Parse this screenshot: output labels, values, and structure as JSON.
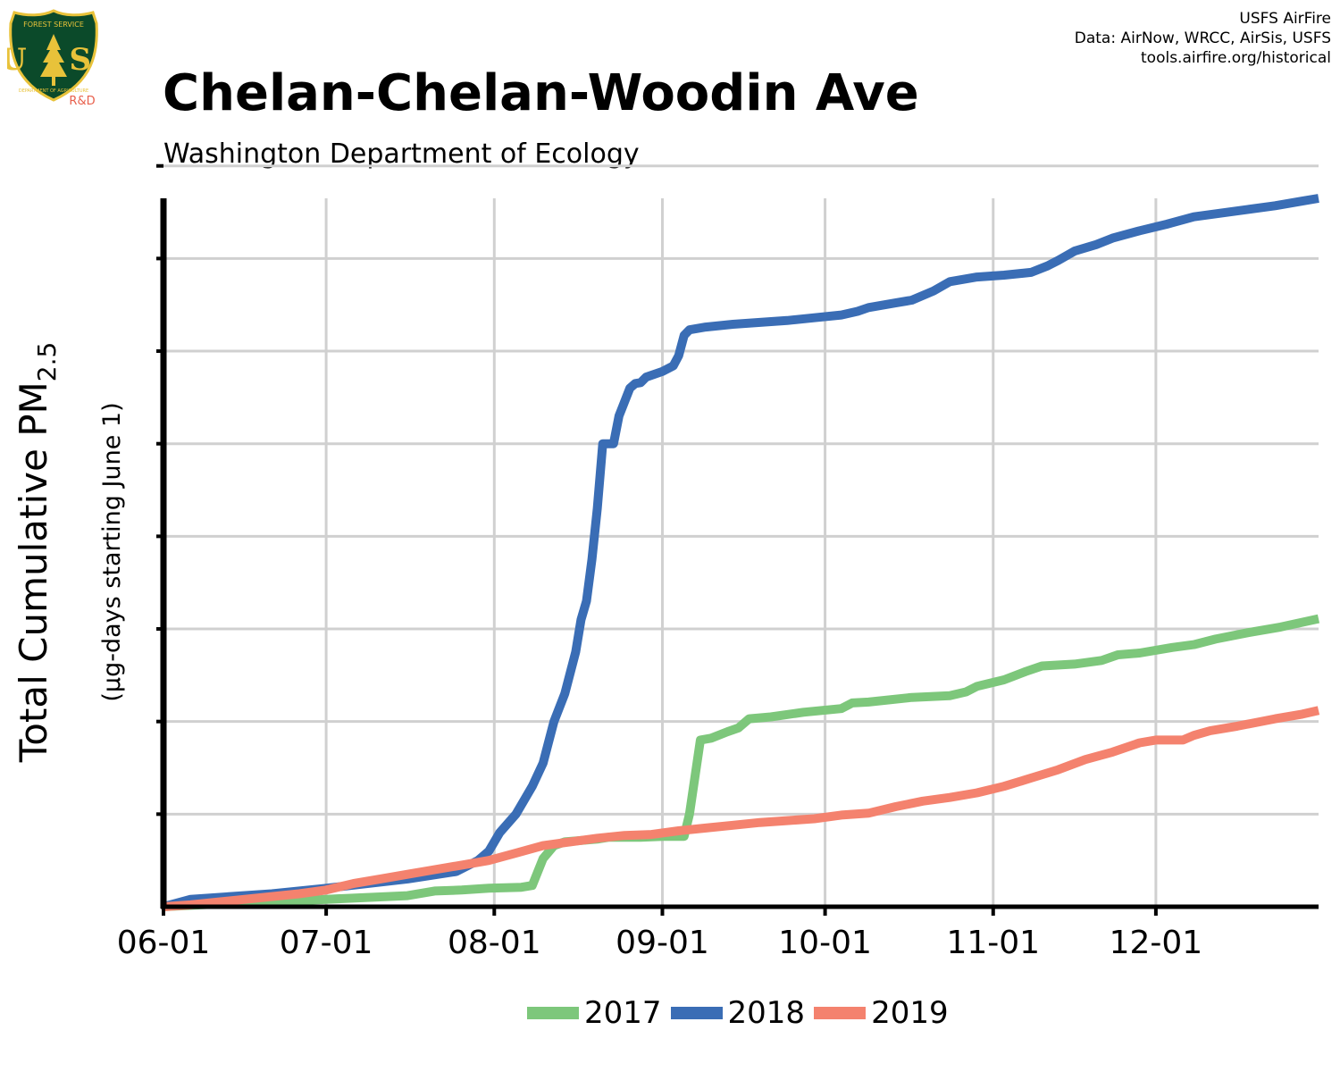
{
  "logo": {
    "icon": "usfs-shield-icon",
    "top_text": "FOREST SERVICE",
    "letters": "U S",
    "bottom_text": "DEPARTMENT OF AGRICULTURE",
    "badge": "R&D",
    "colors": {
      "shield": "#0b4a2a",
      "border": "#e8c23a",
      "badge": "#e8604c"
    }
  },
  "credits": {
    "line1": "USFS AirFire",
    "line2": "Data: AirNow, WRCC, AirSis, USFS",
    "line3": "tools.airfire.org/historical"
  },
  "header": {
    "title": "Chelan-Chelan-Woodin Ave",
    "subtitle": "Washington Department of Ecology"
  },
  "chart_data": {
    "type": "line",
    "title": "Chelan-Chelan-Woodin Ave",
    "subtitle": "Washington Department of Ecology",
    "ylabel_main": "Total Cumulative PM",
    "ylabel_sub": "2.5",
    "ylabel_units": "(µg-days starting June 1)",
    "xlabel": "",
    "x_ticks": [
      "06-01",
      "07-01",
      "08-01",
      "09-01",
      "10-01",
      "11-01",
      "12-01"
    ],
    "x_tick_days": [
      0,
      30,
      61,
      92,
      122,
      153,
      183
    ],
    "x_range": [
      0,
      213
    ],
    "y_range": [
      0,
      7.65
    ],
    "y_gridlines": 8,
    "y_tick_labels_visible": false,
    "grid": true,
    "legend_position": "bottom-center",
    "series": [
      {
        "name": "2017",
        "color": "#7dc77b",
        "points": [
          [
            0,
            0
          ],
          [
            10,
            0.03
          ],
          [
            20,
            0.05
          ],
          [
            30,
            0.08
          ],
          [
            45,
            0.12
          ],
          [
            50,
            0.17
          ],
          [
            55,
            0.18
          ],
          [
            60,
            0.2
          ],
          [
            66,
            0.21
          ],
          [
            68,
            0.23
          ],
          [
            70,
            0.52
          ],
          [
            72,
            0.66
          ],
          [
            74,
            0.7
          ],
          [
            80,
            0.73
          ],
          [
            82,
            0.75
          ],
          [
            88,
            0.75
          ],
          [
            92,
            0.76
          ],
          [
            96,
            0.76
          ],
          [
            97,
            1.0
          ],
          [
            99,
            1.8
          ],
          [
            101,
            1.82
          ],
          [
            104,
            1.89
          ],
          [
            106,
            1.93
          ],
          [
            108,
            2.03
          ],
          [
            112,
            2.05
          ],
          [
            118,
            2.1
          ],
          [
            125,
            2.14
          ],
          [
            127,
            2.2
          ],
          [
            130,
            2.21
          ],
          [
            138,
            2.26
          ],
          [
            145,
            2.28
          ],
          [
            148,
            2.32
          ],
          [
            150,
            2.38
          ],
          [
            155,
            2.45
          ],
          [
            159,
            2.54
          ],
          [
            162,
            2.6
          ],
          [
            168,
            2.62
          ],
          [
            173,
            2.66
          ],
          [
            176,
            2.72
          ],
          [
            180,
            2.74
          ],
          [
            186,
            2.8
          ],
          [
            190,
            2.83
          ],
          [
            194,
            2.89
          ],
          [
            200,
            2.96
          ],
          [
            206,
            3.02
          ],
          [
            213,
            3.11
          ]
        ]
      },
      {
        "name": "2018",
        "color": "#3a6db5",
        "points": [
          [
            0,
            0
          ],
          [
            5,
            0.08
          ],
          [
            20,
            0.14
          ],
          [
            30,
            0.2
          ],
          [
            45,
            0.3
          ],
          [
            54,
            0.38
          ],
          [
            58,
            0.5
          ],
          [
            60,
            0.6
          ],
          [
            62,
            0.8
          ],
          [
            65,
            1.0
          ],
          [
            68,
            1.3
          ],
          [
            70,
            1.55
          ],
          [
            72,
            2.0
          ],
          [
            74,
            2.3
          ],
          [
            76,
            2.75
          ],
          [
            77,
            3.1
          ],
          [
            78,
            3.3
          ],
          [
            79,
            3.75
          ],
          [
            80,
            4.3
          ],
          [
            81,
            5.0
          ],
          [
            83,
            5.0
          ],
          [
            84,
            5.3
          ],
          [
            85,
            5.45
          ],
          [
            86,
            5.6
          ],
          [
            87,
            5.65
          ],
          [
            88,
            5.66
          ],
          [
            89,
            5.72
          ],
          [
            92,
            5.78
          ],
          [
            94,
            5.84
          ],
          [
            95,
            5.95
          ],
          [
            96,
            6.17
          ],
          [
            97,
            6.23
          ],
          [
            100,
            6.26
          ],
          [
            105,
            6.29
          ],
          [
            110,
            6.31
          ],
          [
            115,
            6.33
          ],
          [
            120,
            6.36
          ],
          [
            125,
            6.39
          ],
          [
            128,
            6.43
          ],
          [
            130,
            6.47
          ],
          [
            135,
            6.52
          ],
          [
            138,
            6.55
          ],
          [
            142,
            6.65
          ],
          [
            145,
            6.75
          ],
          [
            150,
            6.8
          ],
          [
            155,
            6.82
          ],
          [
            160,
            6.85
          ],
          [
            163,
            6.92
          ],
          [
            165,
            6.98
          ],
          [
            168,
            7.08
          ],
          [
            172,
            7.15
          ],
          [
            175,
            7.22
          ],
          [
            180,
            7.3
          ],
          [
            185,
            7.37
          ],
          [
            190,
            7.45
          ],
          [
            195,
            7.49
          ],
          [
            200,
            7.53
          ],
          [
            205,
            7.57
          ],
          [
            210,
            7.62
          ],
          [
            213,
            7.65
          ]
        ]
      },
      {
        "name": "2019",
        "color": "#f4826e",
        "points": [
          [
            0,
            0
          ],
          [
            5,
            0.02
          ],
          [
            15,
            0.08
          ],
          [
            25,
            0.14
          ],
          [
            30,
            0.18
          ],
          [
            35,
            0.25
          ],
          [
            40,
            0.3
          ],
          [
            45,
            0.35
          ],
          [
            50,
            0.4
          ],
          [
            55,
            0.45
          ],
          [
            60,
            0.5
          ],
          [
            65,
            0.58
          ],
          [
            70,
            0.66
          ],
          [
            75,
            0.7
          ],
          [
            80,
            0.74
          ],
          [
            85,
            0.77
          ],
          [
            90,
            0.78
          ],
          [
            95,
            0.82
          ],
          [
            100,
            0.85
          ],
          [
            105,
            0.88
          ],
          [
            110,
            0.91
          ],
          [
            115,
            0.93
          ],
          [
            120,
            0.95
          ],
          [
            125,
            0.99
          ],
          [
            130,
            1.01
          ],
          [
            135,
            1.08
          ],
          [
            140,
            1.14
          ],
          [
            145,
            1.18
          ],
          [
            150,
            1.23
          ],
          [
            155,
            1.3
          ],
          [
            160,
            1.39
          ],
          [
            165,
            1.48
          ],
          [
            170,
            1.59
          ],
          [
            175,
            1.67
          ],
          [
            180,
            1.77
          ],
          [
            183,
            1.8
          ],
          [
            188,
            1.8
          ],
          [
            190,
            1.85
          ],
          [
            193,
            1.9
          ],
          [
            198,
            1.95
          ],
          [
            205,
            2.03
          ],
          [
            210,
            2.08
          ],
          [
            213,
            2.12
          ]
        ]
      }
    ]
  }
}
